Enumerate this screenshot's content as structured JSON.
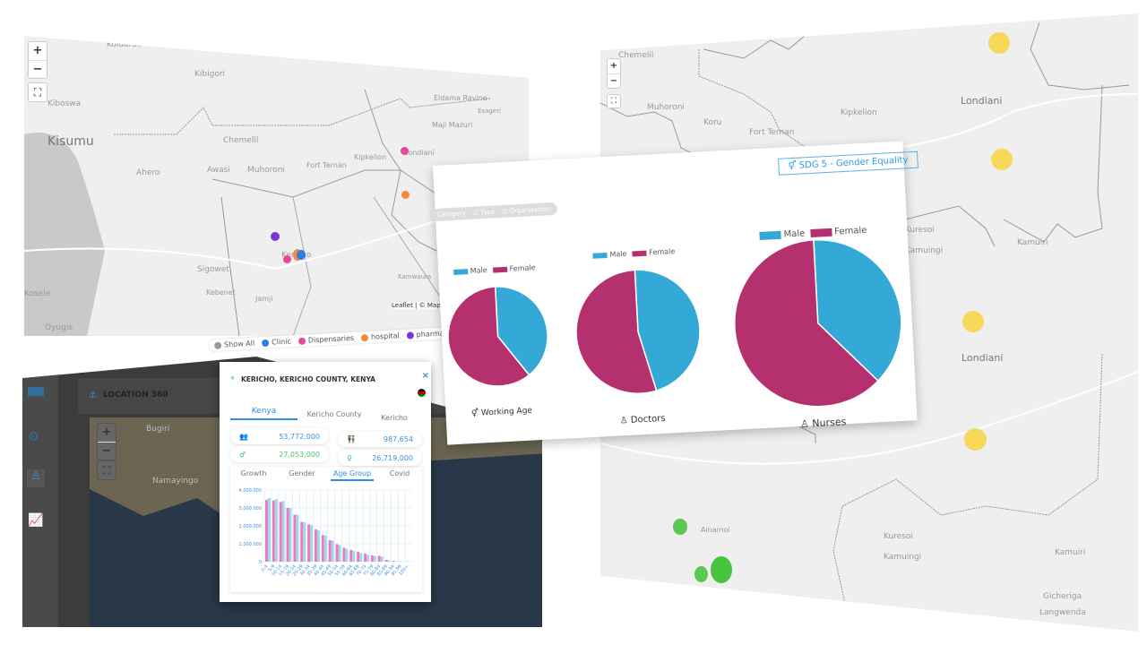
{
  "left_map": {
    "zoom_in": "+",
    "zoom_out": "−",
    "fullscreen_icon": "fullscreen-icon",
    "places": [
      "Koidarak",
      "Kibigori",
      "Kiboswa",
      "Kisumu",
      "Chemelil",
      "Ahero",
      "Awasi",
      "Muhoroni",
      "Eldama Ravine",
      "Esageri",
      "Maji Mazuri",
      "Kipkelion",
      "Fort Ternan",
      "Londiani",
      "Sigowet",
      "Kericho",
      "Kamwaura",
      "Kebenet",
      "Jamji",
      "Oyugis",
      "Kosele"
    ],
    "attribution": "Leaflet | © Mapbox",
    "markers": [
      {
        "type": "Dispensaries",
        "color": "#e8479a"
      },
      {
        "type": "hospital",
        "color": "#f5883b"
      },
      {
        "type": "pharmacy",
        "color": "#7b35d9"
      },
      {
        "type": "Clinic",
        "color": "#2f7ee6"
      }
    ]
  },
  "map_legend": {
    "items": [
      {
        "label": "Show All",
        "color": "#999999"
      },
      {
        "label": "Clinic",
        "color": "#2f7ee6"
      },
      {
        "label": "Dispensaries",
        "color": "#e8479a"
      },
      {
        "label": "hospital",
        "color": "#f5883b"
      },
      {
        "label": "pharmacy",
        "color": "#7b35d9"
      }
    ]
  },
  "dashboard": {
    "title": "LOCATION 360",
    "places": [
      "Bugiri",
      "Namayingo"
    ],
    "zoom_in": "+",
    "zoom_out": "−"
  },
  "popup": {
    "location": "KERICHO, KERICHO COUNTY, KENYA",
    "close": "×",
    "tabs": [
      "Kenya",
      "Kericho County",
      "Kericho"
    ],
    "active_tab": "Kenya",
    "stats": [
      {
        "icon": "population-icon",
        "value": "53,772,000"
      },
      {
        "icon": "gender-icon",
        "value": "987,654"
      },
      {
        "icon": "male-icon",
        "value": "27,053,000"
      },
      {
        "icon": "female-icon",
        "value": "26,719,000"
      }
    ],
    "subtabs": [
      "Growth",
      "Gender",
      "Age Group",
      "Covid"
    ],
    "active_subtab": "Age Group"
  },
  "chart_data": [
    {
      "type": "bar",
      "categories": [
        "0-4",
        "5-9",
        "10-14",
        "15-19",
        "20-24",
        "25-29",
        "30-34",
        "35-39",
        "40-44",
        "45-49",
        "50-54",
        "55-59",
        "60-64",
        "65-69",
        "70-74",
        "75-79",
        "80-84",
        "85-89",
        "90-94",
        "95-99",
        "100+"
      ],
      "series": [
        {
          "values": [
            3450000,
            3420000,
            3330000,
            3000000,
            2620000,
            2220000,
            2080000,
            1800000,
            1480000,
            1200000,
            980000,
            780000,
            660000,
            550000,
            450000,
            350000,
            330000,
            100000,
            50000,
            20000,
            10000
          ],
          "color": "#f07ab8"
        },
        {
          "values": [
            3550000,
            3480000,
            3380000,
            3000000,
            2620000,
            2200000,
            2050000,
            1750000,
            1450000,
            1180000,
            930000,
            720000,
            600000,
            480000,
            380000,
            320000,
            280000,
            80000,
            30000,
            10000,
            5000
          ],
          "color": "#9ad8f2"
        }
      ],
      "yticks": [
        "0",
        "1,000,000",
        "2,000,000",
        "3,000,000",
        "4,000,000"
      ],
      "ylim": [
        0,
        4000000
      ],
      "grid": true
    },
    {
      "type": "pie",
      "caption": "Working Age",
      "icon": "gender-icon",
      "labels": [
        "Male",
        "Female"
      ],
      "values": [
        40,
        60
      ],
      "colors": [
        "#34a8d6",
        "#b5306f"
      ]
    },
    {
      "type": "pie",
      "caption": "Doctors",
      "icon": "doctor-icon",
      "labels": [
        "Male",
        "Female"
      ],
      "values": [
        46,
        54
      ],
      "colors": [
        "#34a8d6",
        "#b5306f"
      ]
    },
    {
      "type": "pie",
      "caption": "Nurses",
      "icon": "nurse-icon",
      "labels": [
        "Male",
        "Female"
      ],
      "values": [
        38,
        62
      ],
      "colors": [
        "#34a8d6",
        "#b5306f"
      ]
    }
  ],
  "pie_panel": {
    "filters": [
      "Category",
      "Type",
      "Organisation"
    ],
    "sdg_badge": "SDG 5 - Gender Equality"
  },
  "right_map": {
    "zoom_in": "+",
    "zoom_out": "−",
    "places": [
      "Chemelil",
      "Muhoroni",
      "Koru",
      "Fort Ternan",
      "Kipkelion",
      "Londiani",
      "Kuresoi",
      "Kamuingi",
      "Kamuiri",
      "Londiani",
      "Ainamoi",
      "Kuresoi",
      "Kamuingi",
      "Kamuiri",
      "Gicheriga",
      "Langwenda"
    ],
    "marker_colors": [
      "#f8d85a",
      "#4ccb45"
    ]
  }
}
